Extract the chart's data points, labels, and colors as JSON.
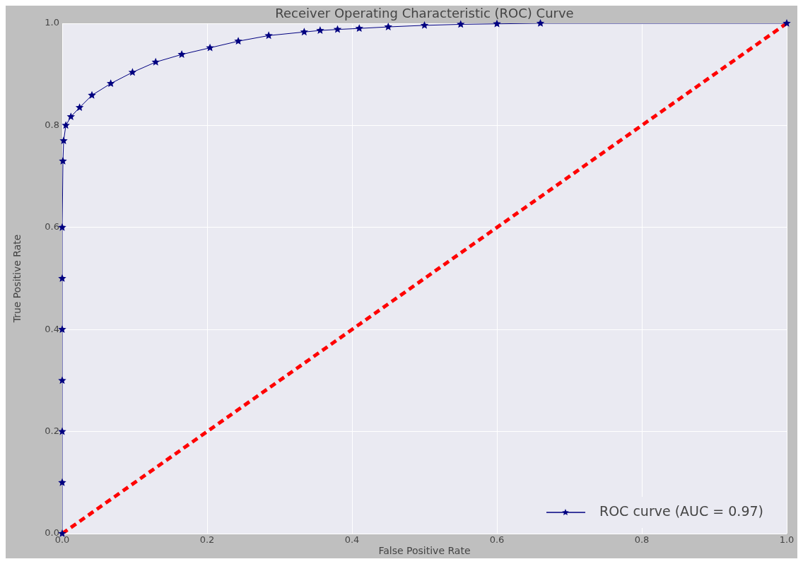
{
  "chart_data": {
    "type": "line",
    "title": "Receiver Operating Characteristic (ROC) Curve",
    "xlabel": "False Positive Rate",
    "ylabel": "True Positive Rate",
    "xlim": [
      0,
      1
    ],
    "ylim": [
      0,
      1
    ],
    "xticks": [
      {
        "value": 0,
        "label": "0.0"
      },
      0.2,
      0.4,
      0.6,
      0.8,
      {
        "value": 1,
        "label": "1.0"
      }
    ],
    "yticks": [
      {
        "value": 0,
        "label": "0.0"
      },
      0.2,
      0.4,
      0.6,
      0.8,
      {
        "value": 1,
        "label": "1.0"
      }
    ],
    "grid": true,
    "legend": "bottom right",
    "marker": "star",
    "series": [
      {
        "name": "ROC curve (AUC = 0.97)",
        "color": "#000080",
        "x": [
          0,
          0,
          0,
          0,
          0,
          0,
          0,
          0.001,
          0.002,
          0.005,
          0.012,
          0.024,
          0.041,
          0.067,
          0.097,
          0.129,
          0.165,
          0.204,
          0.243,
          0.285,
          0.334,
          0.356,
          0.38,
          0.41,
          0.45,
          0.5,
          0.55,
          0.6,
          0.66,
          1
        ],
        "values": [
          0,
          0.1,
          0.2,
          0.3,
          0.4,
          0.5,
          0.6,
          0.73,
          0.77,
          0.8,
          0.817,
          0.835,
          0.859,
          0.882,
          0.904,
          0.924,
          0.939,
          0.952,
          0.965,
          0.976,
          0.983,
          0.986,
          0.988,
          0.99,
          0.993,
          0.996,
          0.998,
          0.999,
          1,
          1
        ]
      },
      {
        "type": "line",
        "color": "#ff0000",
        "line_style": "dashed",
        "marker": "none",
        "x": [
          0,
          1
        ],
        "values": [
          0,
          1
        ]
      }
    ]
  }
}
